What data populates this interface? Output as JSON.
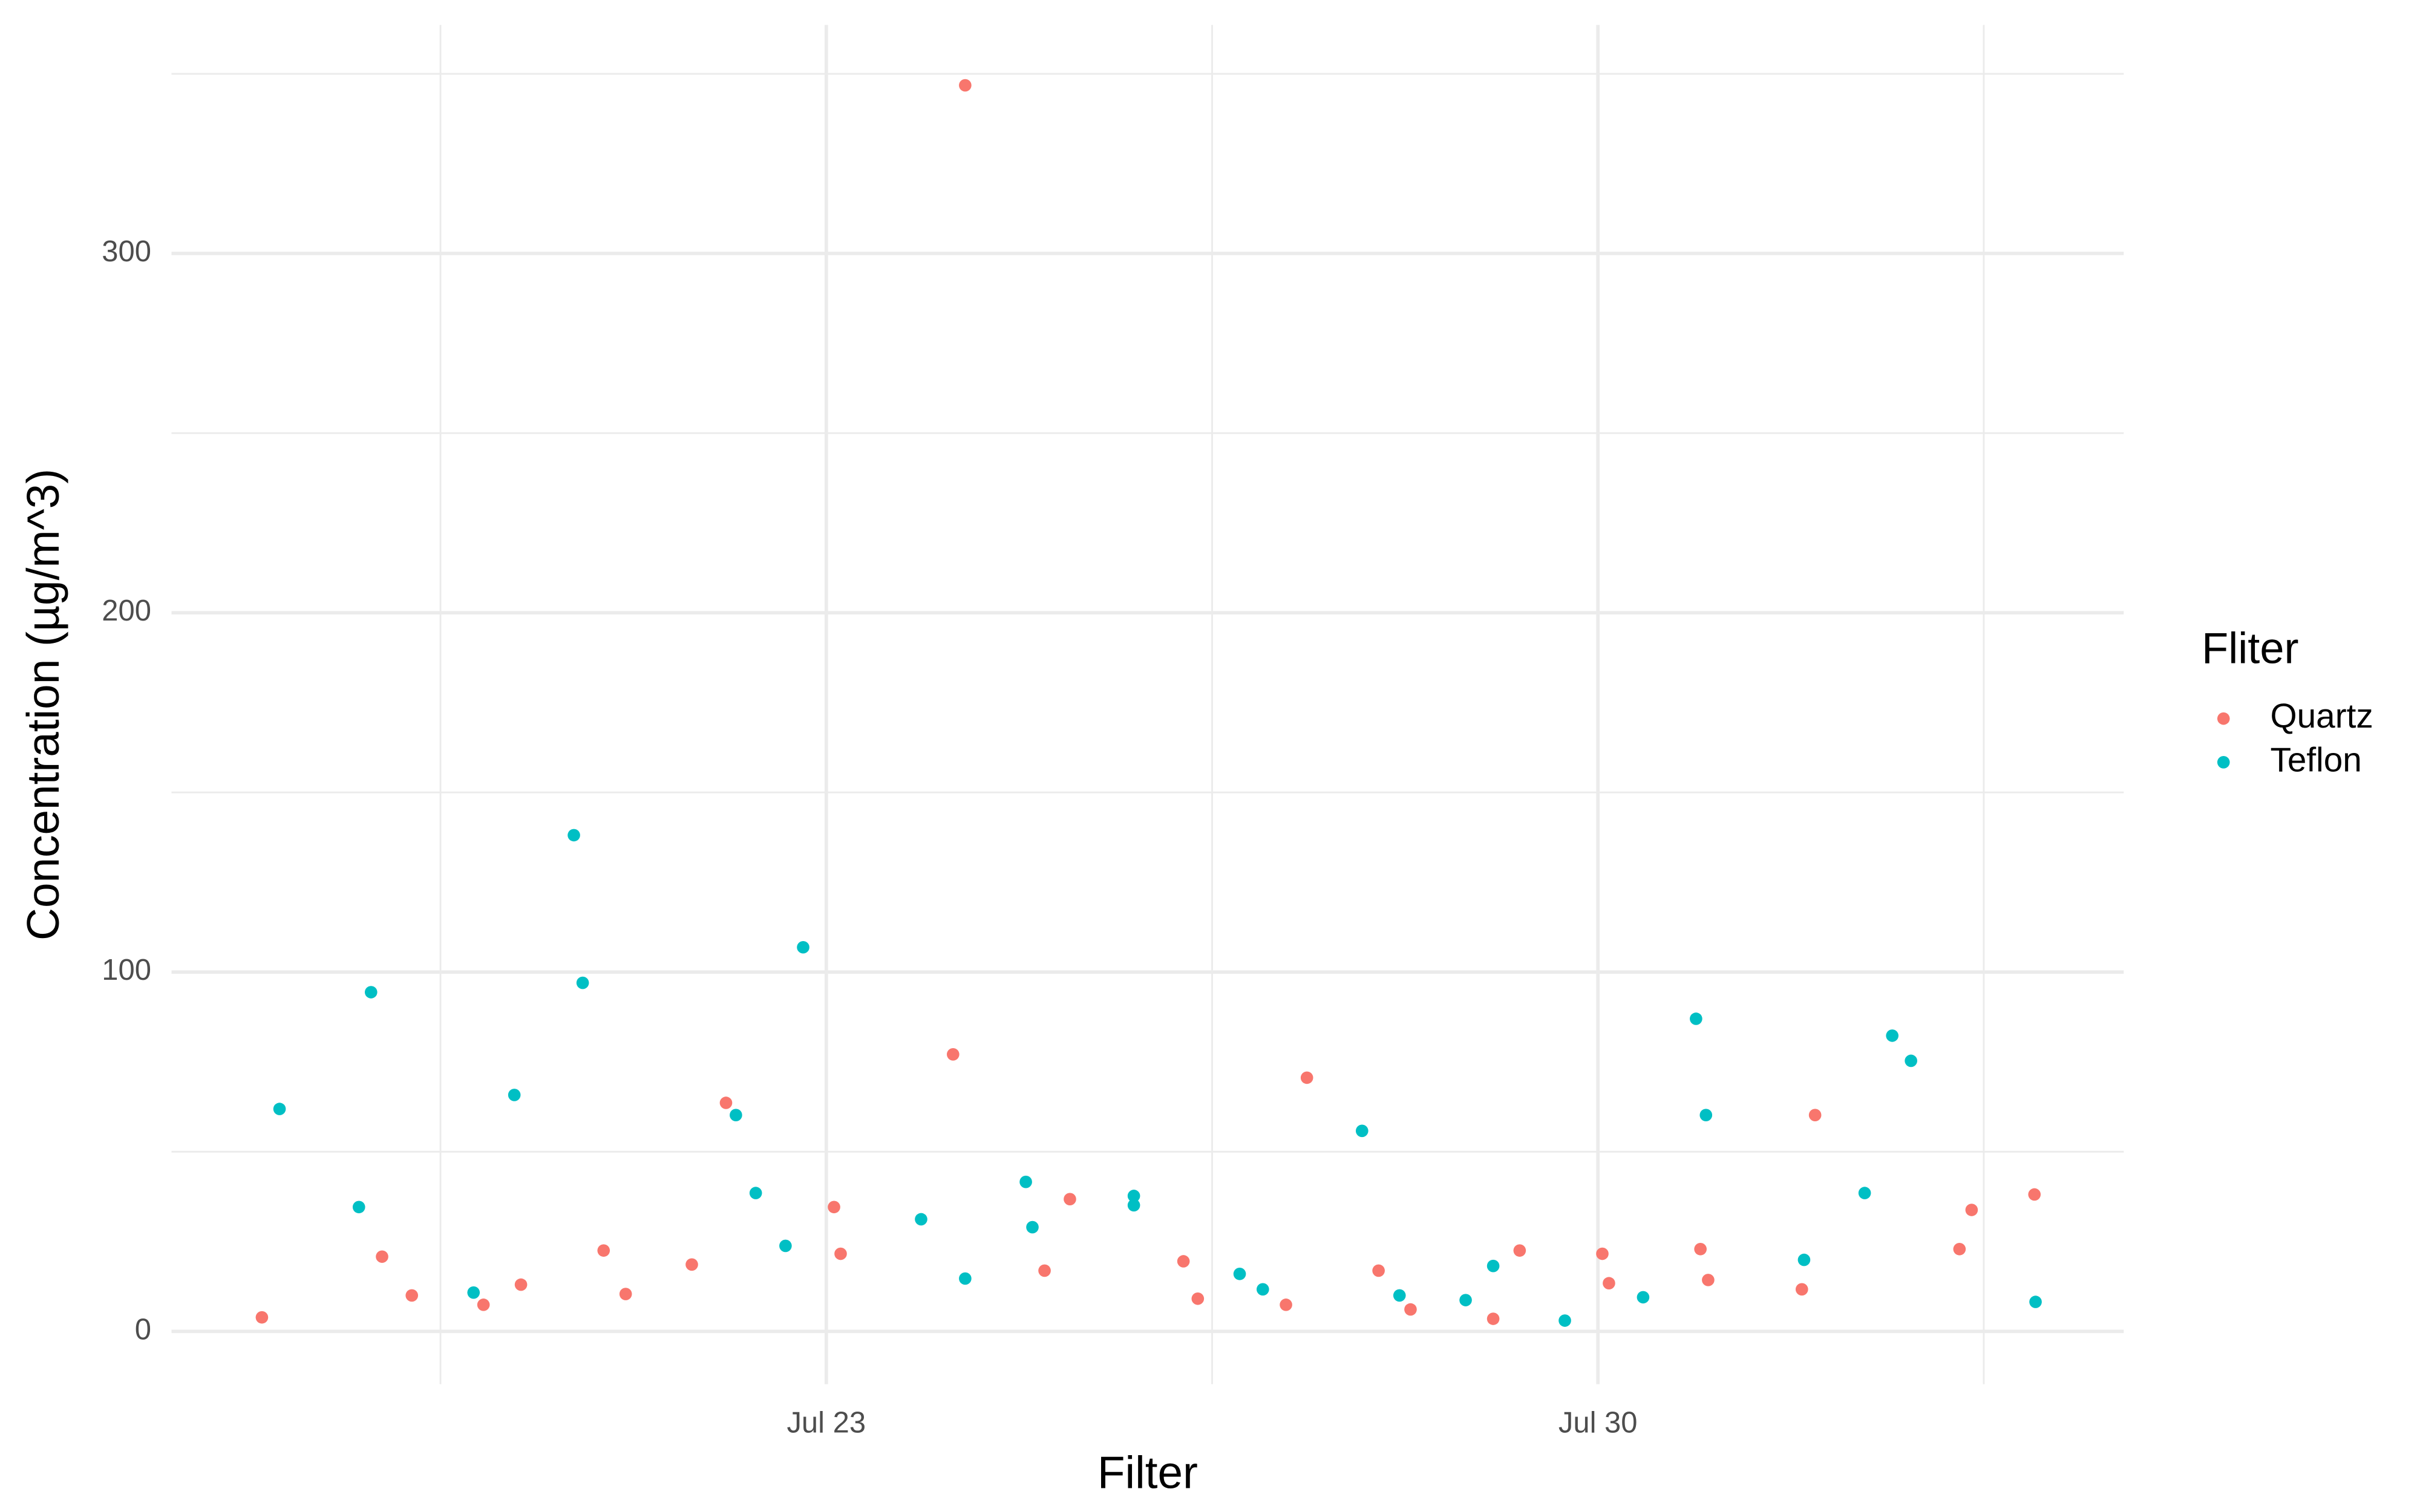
{
  "chart_data": {
    "type": "scatter",
    "x_label": "Filter",
    "y_label": "Concentration (µg/m^3)",
    "legend_title": "Fliter",
    "legend_position": "right",
    "grid": true,
    "xlim": [
      17.06,
      34.77
    ],
    "xticks": [
      {
        "value": 23,
        "label": "Jul 23"
      },
      {
        "value": 30,
        "label": "Jul 30"
      }
    ],
    "x_minor_ticks": [
      19.5,
      26.5,
      33.5
    ],
    "ylim": [
      -14.7,
      363.6
    ],
    "yticks": [
      0,
      100,
      200,
      300
    ],
    "y_minor_ticks": [
      50,
      150,
      250,
      350
    ],
    "series": [
      {
        "name": "Quartz",
        "color": "#F8766D",
        "x": [
          17.88,
          18.97,
          19.24,
          19.89,
          20.23,
          20.98,
          21.18,
          21.78,
          22.09,
          23.07,
          23.13,
          24.15,
          24.26,
          24.98,
          25.21,
          26.24,
          26.37,
          27.17,
          27.36,
          28.01,
          28.3,
          29.05,
          29.29,
          30.04,
          30.1,
          30.93,
          31.0,
          31.85,
          31.97,
          33.28,
          33.39,
          33.96
        ],
        "values": [
          3.9,
          20.8,
          10.0,
          7.4,
          13.0,
          22.5,
          10.4,
          18.6,
          63.6,
          34.6,
          21.6,
          77.1,
          346.8,
          16.9,
          36.8,
          19.5,
          9.1,
          7.4,
          70.6,
          16.9,
          6.1,
          3.5,
          22.5,
          21.6,
          13.4,
          22.9,
          14.3,
          11.7,
          60.2,
          22.9,
          33.8,
          38.1
        ]
      },
      {
        "name": "Teflon",
        "color": "#00BFC4",
        "x": [
          18.04,
          18.76,
          18.87,
          19.8,
          20.17,
          20.71,
          20.79,
          22.18,
          22.36,
          22.63,
          22.79,
          23.86,
          24.26,
          24.81,
          24.87,
          25.79,
          25.79,
          26.75,
          26.96,
          27.86,
          28.2,
          28.8,
          29.05,
          29.7,
          30.41,
          30.89,
          30.98,
          31.87,
          32.42,
          32.67,
          32.84,
          33.97
        ],
        "values": [
          61.9,
          34.6,
          94.4,
          10.8,
          65.8,
          138.1,
          97.0,
          60.2,
          38.5,
          23.8,
          106.9,
          31.2,
          14.7,
          41.6,
          29.0,
          37.7,
          35.1,
          16.0,
          11.7,
          55.8,
          10.0,
          8.7,
          18.2,
          3.0,
          9.5,
          87.0,
          60.2,
          19.9,
          38.5,
          82.3,
          75.3,
          8.2
        ]
      }
    ]
  }
}
